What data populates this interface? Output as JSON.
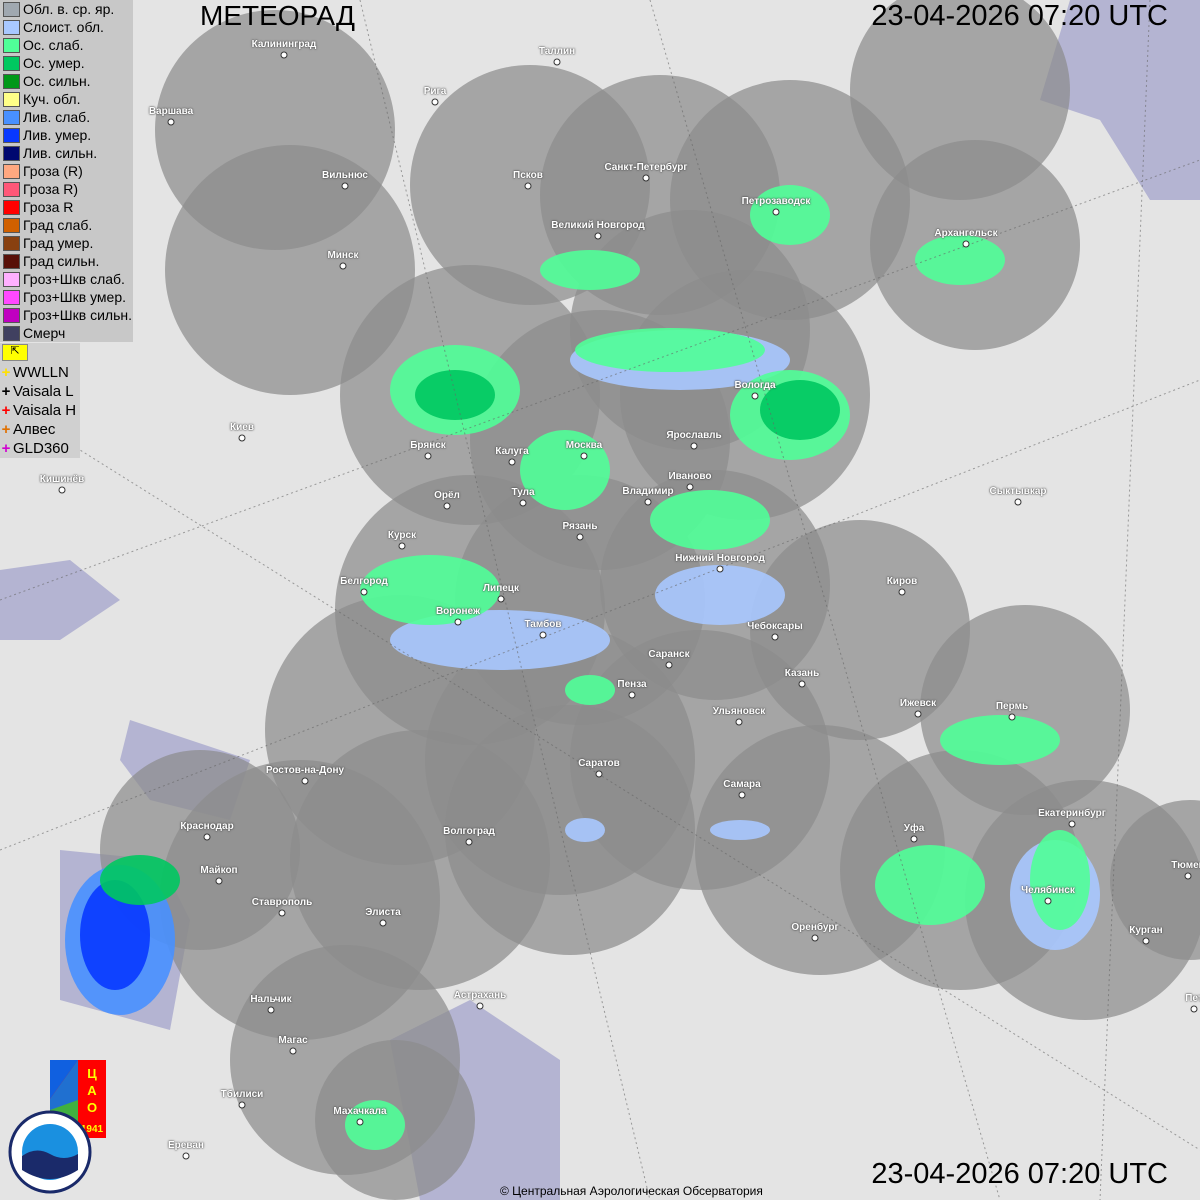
{
  "header": {
    "title": "МЕТЕОРАД",
    "timestamp_top": "23-04-2026  07:20 UTC",
    "timestamp_bottom": "23-04-2026  07:20 UTC"
  },
  "legend": [
    {
      "label": "Обл. в. ср. яр.",
      "color": "#a0a8b0"
    },
    {
      "label": "Слоист. обл.",
      "color": "#a8c8ff"
    },
    {
      "label": "Ос. слаб.",
      "color": "#50ff98"
    },
    {
      "label": "Ос. умер.",
      "color": "#00c860"
    },
    {
      "label": "Ос. сильн.",
      "color": "#009818"
    },
    {
      "label": "Куч. обл.",
      "color": "#ffff88"
    },
    {
      "label": "Лив. слаб.",
      "color": "#4890ff"
    },
    {
      "label": "Лив. умер.",
      "color": "#0838ff"
    },
    {
      "label": "Лив. сильн.",
      "color": "#000870"
    },
    {
      "label": "Гроза (R)",
      "color": "#ffa880"
    },
    {
      "label": "Гроза R)",
      "color": "#ff5878"
    },
    {
      "label": "Гроза R",
      "color": "#ff0000"
    },
    {
      "label": "Град слаб.",
      "color": "#d06000"
    },
    {
      "label": "Град умер.",
      "color": "#884010"
    },
    {
      "label": "Град сильн.",
      "color": "#581008"
    },
    {
      "label": "Гроз+Шкв слаб.",
      "color": "#ffb0ff"
    },
    {
      "label": "Гроз+Шкв умер.",
      "color": "#ff48ff"
    },
    {
      "label": "Гроз+Шкв сильн.",
      "color": "#c000c0"
    },
    {
      "label": "Смерч",
      "color": "#404060"
    }
  ],
  "lightning": {
    "flag_icon": "flag-icon",
    "networks": [
      {
        "label": "WWLLN",
        "color": "#ffe000"
      },
      {
        "label": "Vaisala L",
        "color": "#000000"
      },
      {
        "label": "Vaisala H",
        "color": "#ff0000"
      },
      {
        "label": "Алвес",
        "color": "#e07000"
      },
      {
        "label": "GLD360",
        "color": "#d000d0"
      }
    ]
  },
  "cities": [
    "Калининград",
    "Таллин",
    "Рига",
    "Варшава",
    "Вильнюс",
    "Псков",
    "Санкт-Петербург",
    "Петрозаводск",
    "Архангельск",
    "Великий Новгород",
    "Минск",
    "Вологда",
    "Ярославль",
    "Брянск",
    "Калуга",
    "Москва",
    "Киев",
    "Кишинёв",
    "Тула",
    "Орёл",
    "Владимир",
    "Иваново",
    "Рязань",
    "Курск",
    "Сыктывкар",
    "Нижний Новгород",
    "Белгород",
    "Липецк",
    "Воронеж",
    "Киров",
    "Тамбов",
    "Чебоксары",
    "Саранск",
    "Казань",
    "Пенза",
    "Ижевск",
    "Пермь",
    "Ульяновск",
    "Ростов-на-Дону",
    "Саратов",
    "Самара",
    "Екатеринбург",
    "Краснодар",
    "Волгоград",
    "Уфа",
    "Майкоп",
    "Тюмен",
    "Челябинск",
    "Ставрополь",
    "Элиста",
    "Оренбург",
    "Курган",
    "Астрахань",
    "Нальчик",
    "Пет",
    "Магас",
    "Тбилиси",
    "Махачкала",
    "Ереван"
  ],
  "logos": {
    "cao": "ЦАО 1941",
    "roshydromet": "РОСГИДРОМЕТ ROSHYDROMET"
  },
  "footer": {
    "copyright": "© Центральная Аэрологическая Обсерватория"
  },
  "colors": {
    "radar_coverage": "#8c8c8c",
    "land": "#e6e6e6",
    "water": "#b4b4d2"
  }
}
